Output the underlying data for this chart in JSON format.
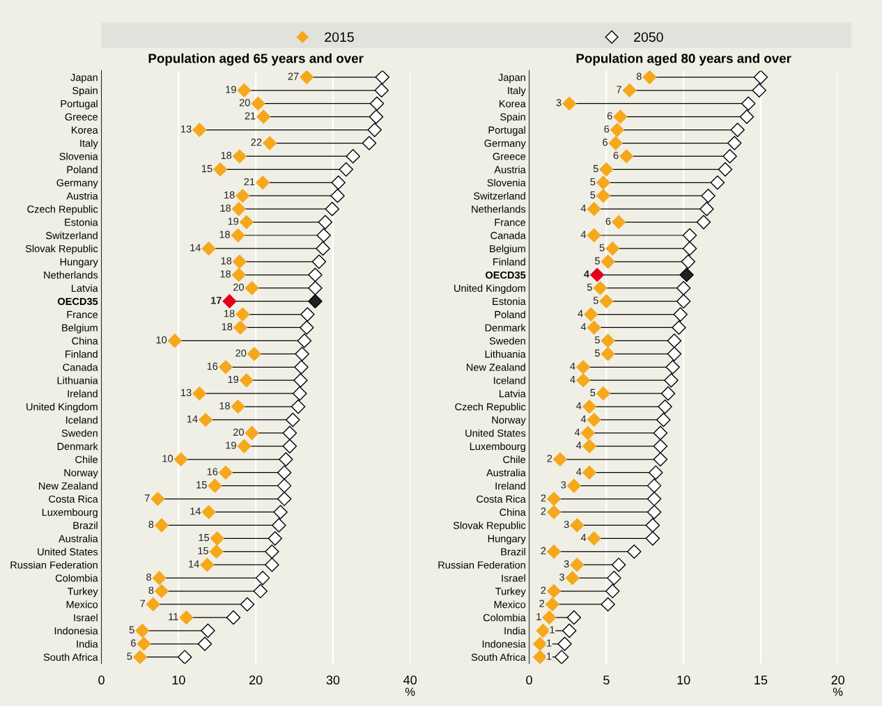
{
  "chart_data": [
    {
      "type": "scatter",
      "orientation": "horizontal",
      "title": "Population aged 65 years and over",
      "xlabel": "%",
      "marker": "diamond",
      "grid": "x",
      "legend": "top",
      "categories": [
        "Japan",
        "Spain",
        "Portugal",
        "Greece",
        "Korea",
        "Italy",
        "Slovenia",
        "Poland",
        "Germany",
        "Austria",
        "Czech Republic",
        "Estonia",
        "Switzerland",
        "Slovak Republic",
        "Hungary",
        "Netherlands",
        "Latvia",
        "OECD35",
        "France",
        "Belgium",
        "China",
        "Finland",
        "Canada",
        "Lithuania",
        "Ireland",
        "United Kingdom",
        "Iceland",
        "Sweden",
        "Denmark",
        "Chile",
        "Norway",
        "New Zealand",
        "Costa Rica",
        "Luxembourg",
        "Brazil",
        "Australia",
        "United States",
        "Russian Federation",
        "Colombia",
        "Turkey",
        "Mexico",
        "Israel",
        "Indonesia",
        "India",
        "South Africa"
      ],
      "xlim": [
        0,
        40
      ],
      "xticks": [
        0,
        10,
        20,
        30,
        40
      ],
      "series": [
        {
          "name": "2015",
          "color": "#f5a81c",
          "colors": [
            "#f5a81c",
            "#f5a81c",
            "#f5a81c",
            "#f5a81c",
            "#f5a81c",
            "#f5a81c",
            "#f5a81c",
            "#f5a81c",
            "#f5a81c",
            "#f5a81c",
            "#f5a81c",
            "#f5a81c",
            "#f5a81c",
            "#f5a81c",
            "#f5a81c",
            "#f5a81c",
            "#f5a81c",
            "#e2001a",
            "#f5a81c",
            "#f5a81c",
            "#f5a81c",
            "#f5a81c",
            "#f5a81c",
            "#f5a81c",
            "#f5a81c",
            "#f5a81c",
            "#f5a81c",
            "#f5a81c",
            "#f5a81c",
            "#f5a81c",
            "#f5a81c",
            "#f5a81c",
            "#f5a81c",
            "#f5a81c",
            "#f5a81c",
            "#f5a81c",
            "#f5a81c",
            "#f5a81c",
            "#f5a81c",
            "#f5a81c",
            "#f5a81c",
            "#f5a81c",
            "#f5a81c",
            "#f5a81c",
            "#f5a81c"
          ],
          "values": [
            26.6,
            18.5,
            20.3,
            21.0,
            12.7,
            21.8,
            17.9,
            15.4,
            20.9,
            18.3,
            17.8,
            18.8,
            17.7,
            13.9,
            17.9,
            17.8,
            19.5,
            16.6,
            18.3,
            18.0,
            9.5,
            19.8,
            16.1,
            18.8,
            12.7,
            17.7,
            13.5,
            19.5,
            18.5,
            10.3,
            16.1,
            14.7,
            7.3,
            13.9,
            7.8,
            15.0,
            14.9,
            13.7,
            7.5,
            7.8,
            6.7,
            11.0,
            5.3,
            5.5,
            5.0
          ],
          "value_labels": [
            "27",
            "19",
            "20",
            "21",
            "13",
            "22",
            "18",
            "15",
            "21",
            "18",
            "18",
            "19",
            "18",
            "14",
            "18",
            "18",
            "20",
            "17",
            "18",
            "18",
            "10",
            "20",
            "16",
            "19",
            "13",
            "18",
            "14",
            "20",
            "19",
            "10",
            "16",
            "15",
            "7",
            "14",
            "8",
            "15",
            "15",
            "14",
            "8",
            "8",
            "7",
            "11",
            "5",
            "6",
            "5"
          ]
        },
        {
          "name": "2050",
          "color": "#000000",
          "colors": [
            "#ffffff",
            "#ffffff",
            "#ffffff",
            "#ffffff",
            "#ffffff",
            "#ffffff",
            "#ffffff",
            "#ffffff",
            "#ffffff",
            "#ffffff",
            "#ffffff",
            "#ffffff",
            "#ffffff",
            "#ffffff",
            "#ffffff",
            "#ffffff",
            "#ffffff",
            "#222222",
            "#ffffff",
            "#ffffff",
            "#ffffff",
            "#ffffff",
            "#ffffff",
            "#ffffff",
            "#ffffff",
            "#ffffff",
            "#ffffff",
            "#ffffff",
            "#ffffff",
            "#ffffff",
            "#ffffff",
            "#ffffff",
            "#ffffff",
            "#ffffff",
            "#ffffff",
            "#ffffff",
            "#ffffff",
            "#ffffff",
            "#ffffff",
            "#ffffff",
            "#ffffff",
            "#ffffff",
            "#ffffff",
            "#ffffff",
            "#ffffff"
          ],
          "values": [
            36.4,
            36.3,
            35.7,
            35.6,
            35.4,
            34.7,
            32.6,
            31.7,
            30.7,
            30.6,
            29.9,
            29.0,
            28.8,
            28.7,
            28.2,
            27.7,
            27.7,
            27.7,
            26.7,
            26.6,
            26.3,
            26.0,
            25.9,
            25.8,
            25.7,
            25.5,
            24.8,
            24.4,
            24.4,
            23.9,
            23.7,
            23.7,
            23.7,
            23.2,
            23.0,
            22.5,
            22.1,
            22.1,
            20.9,
            20.6,
            18.9,
            17.1,
            13.8,
            13.4,
            10.8
          ]
        }
      ]
    },
    {
      "type": "scatter",
      "orientation": "horizontal",
      "title": "Population aged 80 years and over",
      "xlabel": "%",
      "marker": "diamond",
      "grid": "x",
      "categories": [
        "Japan",
        "Italy",
        "Korea",
        "Spain",
        "Portugal",
        "Germany",
        "Greece",
        "Austria",
        "Slovenia",
        "Switzerland",
        "Netherlands",
        "France",
        "Canada",
        "Belgium",
        "Finland",
        "OECD35",
        "United Kingdom",
        "Estonia",
        "Poland",
        "Denmark",
        "Sweden",
        "Lithuania",
        "New Zealand",
        "Iceland",
        "Latvia",
        "Czech Republic",
        "Norway",
        "United States",
        "Luxembourg",
        "Chile",
        "Australia",
        "Ireland",
        "Costa Rica",
        "China",
        "Slovak Republic",
        "Hungary",
        "Brazil",
        "Russian Federation",
        "Israel",
        "Turkey",
        "Mexico",
        "Colombia",
        "India",
        "Indonesia",
        "South Africa"
      ],
      "xlim": [
        0,
        20
      ],
      "xticks": [
        0,
        5,
        10,
        15,
        20
      ],
      "series": [
        {
          "name": "2015",
          "color": "#f5a81c",
          "colors": [
            "#f5a81c",
            "#f5a81c",
            "#f5a81c",
            "#f5a81c",
            "#f5a81c",
            "#f5a81c",
            "#f5a81c",
            "#f5a81c",
            "#f5a81c",
            "#f5a81c",
            "#f5a81c",
            "#f5a81c",
            "#f5a81c",
            "#f5a81c",
            "#f5a81c",
            "#e2001a",
            "#f5a81c",
            "#f5a81c",
            "#f5a81c",
            "#f5a81c",
            "#f5a81c",
            "#f5a81c",
            "#f5a81c",
            "#f5a81c",
            "#f5a81c",
            "#f5a81c",
            "#f5a81c",
            "#f5a81c",
            "#f5a81c",
            "#f5a81c",
            "#f5a81c",
            "#f5a81c",
            "#f5a81c",
            "#f5a81c",
            "#f5a81c",
            "#f5a81c",
            "#f5a81c",
            "#f5a81c",
            "#f5a81c",
            "#f5a81c",
            "#f5a81c",
            "#f5a81c",
            "#f5a81c",
            "#f5a81c",
            "#f5a81c"
          ],
          "values": [
            7.8,
            6.5,
            2.6,
            5.9,
            5.7,
            5.6,
            6.3,
            5.0,
            4.8,
            4.8,
            4.2,
            5.8,
            4.2,
            5.4,
            5.1,
            4.4,
            4.6,
            5.0,
            4.0,
            4.2,
            5.1,
            5.1,
            3.5,
            3.5,
            4.8,
            3.9,
            4.2,
            3.8,
            3.9,
            2.0,
            3.9,
            2.9,
            1.6,
            1.6,
            3.1,
            4.2,
            1.6,
            3.1,
            2.8,
            1.6,
            1.5,
            1.3,
            0.9,
            0.7,
            0.7
          ],
          "value_labels": [
            "8",
            "7",
            "3",
            "6",
            "6",
            "6",
            "6",
            "5",
            "5",
            "5",
            "4",
            "6",
            "4",
            "5",
            "5",
            "4",
            "5",
            "5",
            "4",
            "4",
            "5",
            "5",
            "4",
            "4",
            "5",
            "4",
            "4",
            "4",
            "4",
            "2",
            "4",
            "3",
            "2",
            "2",
            "3",
            "4",
            "2",
            "3",
            "3",
            "2",
            "2",
            "1",
            "1",
            "1",
            "1"
          ]
        },
        {
          "name": "2050",
          "color": "#000000",
          "colors": [
            "#ffffff",
            "#ffffff",
            "#ffffff",
            "#ffffff",
            "#ffffff",
            "#ffffff",
            "#ffffff",
            "#ffffff",
            "#ffffff",
            "#ffffff",
            "#ffffff",
            "#ffffff",
            "#ffffff",
            "#ffffff",
            "#ffffff",
            "#222222",
            "#ffffff",
            "#ffffff",
            "#ffffff",
            "#ffffff",
            "#ffffff",
            "#ffffff",
            "#ffffff",
            "#ffffff",
            "#ffffff",
            "#ffffff",
            "#ffffff",
            "#ffffff",
            "#ffffff",
            "#ffffff",
            "#ffffff",
            "#ffffff",
            "#ffffff",
            "#ffffff",
            "#ffffff",
            "#ffffff",
            "#ffffff",
            "#ffffff",
            "#ffffff",
            "#ffffff",
            "#ffffff",
            "#ffffff",
            "#ffffff",
            "#ffffff",
            "#ffffff"
          ],
          "values": [
            15.0,
            14.9,
            14.2,
            14.1,
            13.5,
            13.3,
            13.0,
            12.7,
            12.2,
            11.6,
            11.5,
            11.3,
            10.4,
            10.4,
            10.3,
            10.2,
            10.0,
            10.0,
            9.8,
            9.7,
            9.4,
            9.4,
            9.3,
            9.2,
            9.0,
            8.8,
            8.7,
            8.5,
            8.5,
            8.5,
            8.2,
            8.1,
            8.1,
            8.1,
            8.0,
            8.0,
            6.8,
            5.8,
            5.5,
            5.4,
            5.1,
            2.9,
            2.6,
            2.3,
            2.1
          ]
        }
      ]
    }
  ]
}
